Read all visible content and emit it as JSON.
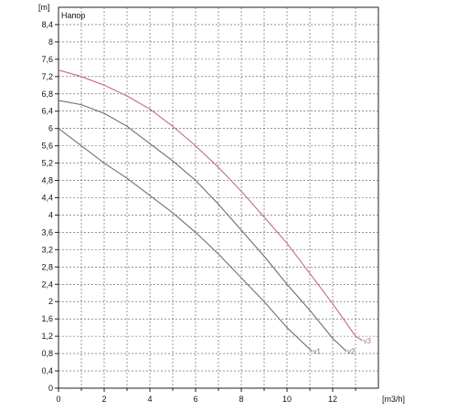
{
  "chart_data": {
    "type": "line",
    "title": "Напор",
    "xlabel": "[m3/h]",
    "ylabel": "[m]",
    "xlim": [
      0,
      14
    ],
    "ylim": [
      0,
      8.8
    ],
    "x_ticks": [
      "0",
      "2",
      "4",
      "6",
      "8",
      "10",
      "12"
    ],
    "y_ticks": [
      "0",
      "0,4",
      "0,8",
      "1,2",
      "1,6",
      "2",
      "2,4",
      "2,8",
      "3,2",
      "3,6",
      "4",
      "4,4",
      "4,8",
      "5,2",
      "5,6",
      "6",
      "6,4",
      "6,8",
      "7,2",
      "7,6",
      "8",
      "8,4"
    ],
    "grid": true,
    "series": [
      {
        "name": "v1",
        "color": "#7a6a75",
        "points": [
          [
            0,
            6.0
          ],
          [
            1,
            5.6
          ],
          [
            2,
            5.2
          ],
          [
            3,
            4.85
          ],
          [
            4,
            4.45
          ],
          [
            5,
            4.05
          ],
          [
            6,
            3.6
          ],
          [
            7,
            3.1
          ],
          [
            8,
            2.55
          ],
          [
            9,
            2.0
          ],
          [
            10,
            1.4
          ],
          [
            11,
            0.9
          ],
          [
            11.1,
            0.85
          ]
        ]
      },
      {
        "name": "v2",
        "color": "#6e6a72",
        "points": [
          [
            0,
            6.65
          ],
          [
            1,
            6.55
          ],
          [
            2,
            6.35
          ],
          [
            3,
            6.05
          ],
          [
            4,
            5.65
          ],
          [
            5,
            5.25
          ],
          [
            6,
            4.8
          ],
          [
            7,
            4.25
          ],
          [
            8,
            3.65
          ],
          [
            9,
            3.05
          ],
          [
            10,
            2.4
          ],
          [
            11,
            1.8
          ],
          [
            12,
            1.15
          ],
          [
            12.6,
            0.85
          ]
        ]
      },
      {
        "name": "v3",
        "color": "#c46a8a",
        "points": [
          [
            0,
            7.35
          ],
          [
            1,
            7.2
          ],
          [
            2,
            7.0
          ],
          [
            3,
            6.75
          ],
          [
            4,
            6.45
          ],
          [
            5,
            6.05
          ],
          [
            6,
            5.6
          ],
          [
            7,
            5.1
          ],
          [
            8,
            4.55
          ],
          [
            9,
            3.95
          ],
          [
            10,
            3.35
          ],
          [
            11,
            2.65
          ],
          [
            12,
            1.95
          ],
          [
            13,
            1.2
          ],
          [
            13.3,
            1.1
          ]
        ]
      }
    ]
  }
}
